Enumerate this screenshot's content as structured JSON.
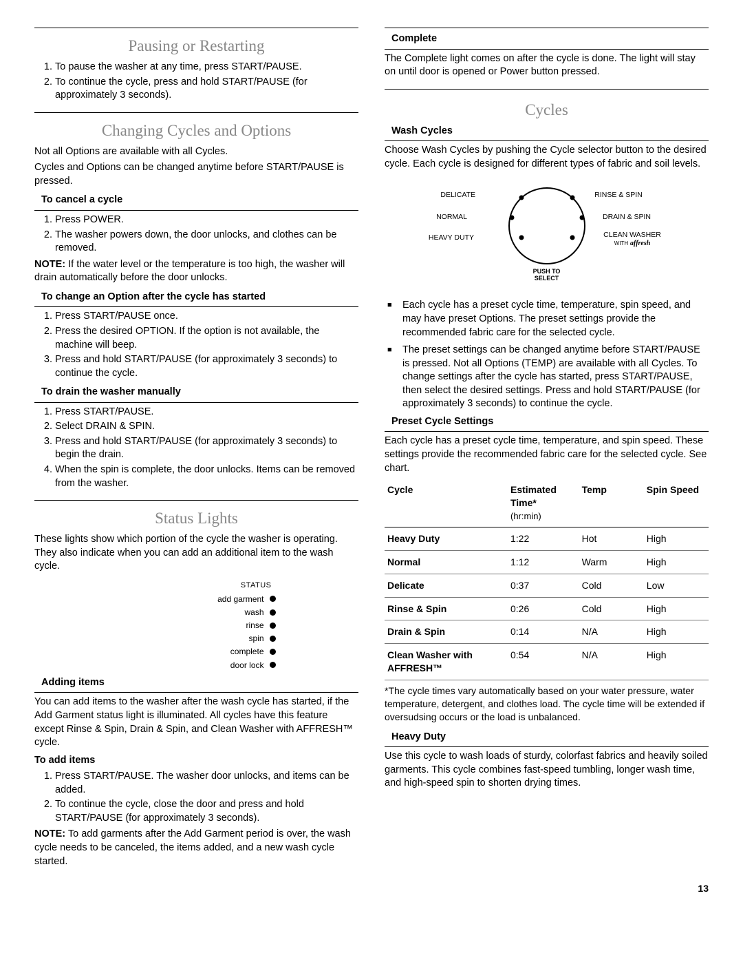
{
  "leftCol": {
    "pausing": {
      "title": "Pausing or Restarting",
      "steps": [
        "To pause the washer at any time, press START/PAUSE.",
        "To continue the cycle, press and hold START/PAUSE (for approximately 3 seconds)."
      ]
    },
    "changing": {
      "title": "Changing Cycles and Options",
      "intro1": "Not all Options are available with all Cycles.",
      "intro2": "Cycles and Options can be changed anytime before START/PAUSE is pressed.",
      "cancel": {
        "head": "To cancel a cycle",
        "steps": [
          "Press POWER.",
          "The washer powers down, the door unlocks, and clothes can be removed."
        ],
        "noteLabel": "NOTE:",
        "note": " If the water level or the temperature is too high, the washer will drain automatically before the door unlocks."
      },
      "changeOption": {
        "head": "To change an Option after the cycle has started",
        "steps": [
          "Press START/PAUSE once.",
          "Press the desired OPTION. If the option is not available, the machine will beep.",
          "Press and hold START/PAUSE (for approximately 3 seconds) to continue the cycle."
        ]
      },
      "drain": {
        "head": "To drain the washer manually",
        "steps": [
          "Press START/PAUSE.",
          "Select DRAIN & SPIN.",
          "Press and hold START/PAUSE (for approximately 3 seconds) to begin the drain.",
          "When the spin is complete, the door unlocks. Items can be removed from the washer."
        ]
      }
    },
    "statusLights": {
      "title": "Status Lights",
      "intro": "These lights show which portion of the cycle the washer is operating. They also indicate when you can add an additional item to the wash cycle.",
      "statusLabel": "STATUS",
      "lights": [
        "add garment",
        "wash",
        "rinse",
        "spin",
        "complete",
        "door lock"
      ]
    },
    "adding": {
      "head": "Adding items",
      "intro": "You can add items to the washer after the wash cycle has started, if the Add Garment status light is illuminated. All cycles have this feature except Rinse & Spin, Drain & Spin, and Clean Washer with AFFRESH™ cycle.",
      "toAddHead": "To add items",
      "steps": [
        "Press START/PAUSE. The washer door unlocks, and items can be added.",
        "To continue the cycle, close the door and press and hold START/PAUSE (for approximately 3 seconds)."
      ],
      "noteLabel": "NOTE:",
      "note": " To add garments after the Add Garment period is over, the wash cycle needs to be canceled, the items added, and a new wash cycle started."
    }
  },
  "rightCol": {
    "complete": {
      "head": "Complete",
      "text": "The Complete light comes on after the cycle is done. The light will stay on until door is opened or Power button pressed."
    },
    "cycles": {
      "title": "Cycles",
      "washHead": "Wash Cycles",
      "intro": "Choose Wash Cycles by pushing the Cycle selector button to the desired cycle. Each cycle is designed for different types of fabric and soil levels.",
      "dial": {
        "labels": {
          "delicate": "DELICATE",
          "normal": "NORMAL",
          "heavyDuty": "HEAVY DUTY",
          "rinseSpin": "RINSE & SPIN",
          "drainSpin": "DRAIN & SPIN",
          "cleanWasher": "CLEAN WASHER",
          "with": "WITH",
          "affresh": "affresh"
        },
        "push": "PUSH TO SELECT"
      },
      "bullets": [
        "Each cycle has a preset cycle time, temperature, spin speed, and may have preset Options. The preset settings provide the recommended fabric care for the selected cycle.",
        "The preset settings can be changed anytime before START/PAUSE is pressed. Not all Options (TEMP) are available with all Cycles. To change settings after the cycle has started, press START/PAUSE, then select the desired settings. Press and hold START/PAUSE (for approximately 3 seconds) to continue the cycle."
      ],
      "preset": {
        "head": "Preset Cycle Settings",
        "intro": "Each cycle has a preset cycle time, temperature, and spin speed. These settings provide the recommended fabric care for the selected cycle. See chart.",
        "columns": {
          "cycle": "Cycle",
          "time": "Estimated Time*",
          "timeSub": "(hr:min)",
          "temp": "Temp",
          "spin": "Spin Speed"
        },
        "rows": [
          {
            "name": "Heavy Duty",
            "time": "1:22",
            "temp": "Hot",
            "spin": "High"
          },
          {
            "name": "Normal",
            "time": "1:12",
            "temp": "Warm",
            "spin": "High"
          },
          {
            "name": "Delicate",
            "time": "0:37",
            "temp": "Cold",
            "spin": "Low"
          },
          {
            "name": "Rinse & Spin",
            "time": "0:26",
            "temp": "Cold",
            "spin": "High"
          },
          {
            "name": "Drain & Spin",
            "time": "0:14",
            "temp": "N/A",
            "spin": "High"
          },
          {
            "name": "Clean Washer with AFFRESH™",
            "time": "0:54",
            "temp": "N/A",
            "spin": "High"
          }
        ],
        "footnote": "*The cycle times vary automatically based on your water pressure, water temperature, detergent, and clothes load. The cycle time will be extended if oversudsing occurs or the load is unbalanced."
      },
      "heavyDuty": {
        "head": "Heavy Duty",
        "text": "Use this cycle to wash loads of sturdy, colorfast fabrics and heavily soiled garments. This cycle combines fast-speed tumbling, longer wash time, and high-speed spin to shorten drying times."
      }
    }
  },
  "pageNum": "13"
}
